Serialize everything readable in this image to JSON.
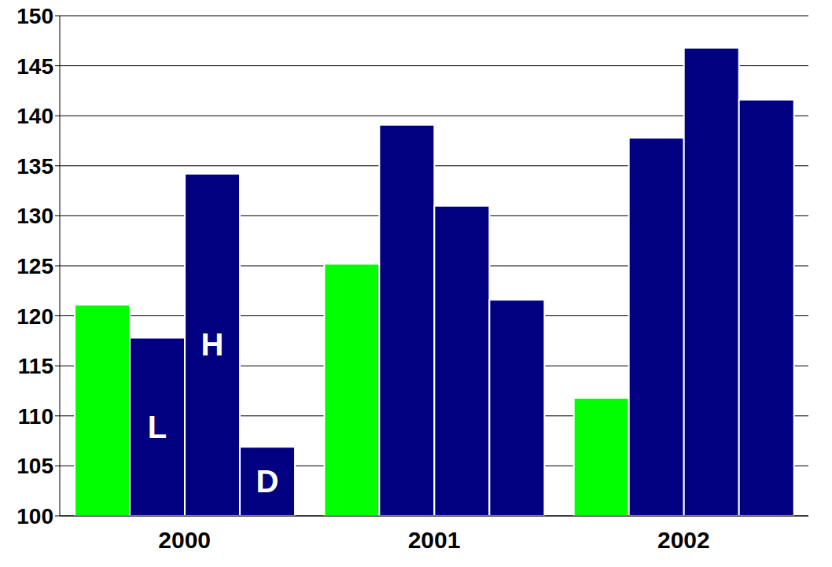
{
  "chart_data": {
    "type": "bar",
    "categories": [
      "2000",
      "2001",
      "2002"
    ],
    "series": [
      {
        "color": "#00ff00",
        "values": [
          121.1,
          125.2,
          111.8
        ]
      },
      {
        "name": "L",
        "color": "#000080",
        "values": [
          117.8,
          139.1,
          137.8
        ]
      },
      {
        "name": "H",
        "color": "#000080",
        "values": [
          134.2,
          131.0,
          146.8
        ]
      },
      {
        "name": "D",
        "color": "#000080",
        "values": [
          106.9,
          121.6,
          141.6
        ]
      }
    ],
    "ylim": [
      100,
      150
    ],
    "yticks": [
      100,
      105,
      110,
      115,
      120,
      125,
      130,
      135,
      140,
      145,
      150
    ],
    "grid": true
  }
}
